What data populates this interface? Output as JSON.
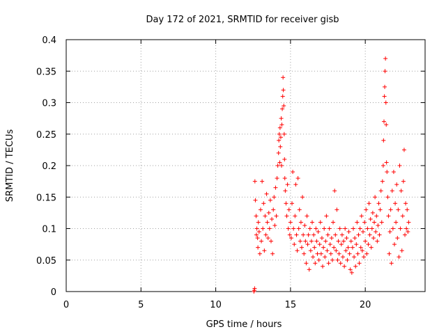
{
  "chart_data": {
    "type": "scatter",
    "title": "Day 172 of 2021, SRMTID for receiver gisb",
    "xlabel": "GPS time / hours",
    "ylabel": "SRMTID / TECUs",
    "xlim": [
      0,
      24
    ],
    "ylim": [
      0,
      0.4
    ],
    "x_ticks": [
      0,
      5,
      10,
      15,
      20
    ],
    "y_ticks": [
      0,
      0.05,
      0.1,
      0.15,
      0.2,
      0.25,
      0.3,
      0.35,
      0.4
    ],
    "grid": true,
    "marker": "+",
    "color": "#ff0000",
    "series": [
      {
        "points": [
          [
            12.55,
            0.0
          ],
          [
            12.58,
            0.002
          ],
          [
            12.6,
            0.005
          ],
          [
            12.62,
            0.175
          ],
          [
            12.65,
            0.145
          ],
          [
            12.7,
            0.12
          ],
          [
            12.72,
            0.09
          ],
          [
            12.75,
            0.1
          ],
          [
            12.8,
            0.085
          ],
          [
            12.82,
            0.07
          ],
          [
            12.85,
            0.11
          ],
          [
            12.9,
            0.095
          ],
          [
            12.95,
            0.06
          ],
          [
            13.0,
            0.13
          ],
          [
            13.05,
            0.08
          ],
          [
            13.1,
            0.175
          ],
          [
            13.15,
            0.1
          ],
          [
            13.2,
            0.14
          ],
          [
            13.25,
            0.065
          ],
          [
            13.3,
            0.12
          ],
          [
            13.35,
            0.09
          ],
          [
            13.4,
            0.155
          ],
          [
            13.45,
            0.11
          ],
          [
            13.5,
            0.085
          ],
          [
            13.55,
            0.125
          ],
          [
            13.6,
            0.1
          ],
          [
            13.65,
            0.145
          ],
          [
            13.7,
            0.08
          ],
          [
            13.75,
            0.115
          ],
          [
            13.8,
            0.06
          ],
          [
            13.85,
            0.13
          ],
          [
            13.9,
            0.15
          ],
          [
            13.95,
            0.105
          ],
          [
            14.0,
            0.165
          ],
          [
            14.05,
            0.12
          ],
          [
            14.1,
            0.18
          ],
          [
            14.15,
            0.2
          ],
          [
            14.2,
            0.22
          ],
          [
            14.22,
            0.24
          ],
          [
            14.25,
            0.25
          ],
          [
            14.28,
            0.205
          ],
          [
            14.3,
            0.26
          ],
          [
            14.32,
            0.23
          ],
          [
            14.35,
            0.245
          ],
          [
            14.38,
            0.275
          ],
          [
            14.4,
            0.2
          ],
          [
            14.42,
            0.265
          ],
          [
            14.45,
            0.29
          ],
          [
            14.48,
            0.31
          ],
          [
            14.5,
            0.34
          ],
          [
            14.52,
            0.32
          ],
          [
            14.55,
            0.295
          ],
          [
            14.58,
            0.25
          ],
          [
            14.6,
            0.21
          ],
          [
            14.62,
            0.18
          ],
          [
            14.65,
            0.16
          ],
          [
            14.7,
            0.14
          ],
          [
            14.75,
            0.12
          ],
          [
            14.8,
            0.17
          ],
          [
            14.85,
            0.1
          ],
          [
            14.9,
            0.13
          ],
          [
            14.95,
            0.09
          ],
          [
            15.0,
            0.11
          ],
          [
            15.05,
            0.085
          ],
          [
            15.1,
            0.14
          ],
          [
            15.15,
            0.19
          ],
          [
            15.2,
            0.1
          ],
          [
            15.25,
            0.075
          ],
          [
            15.3,
            0.12
          ],
          [
            15.35,
            0.17
          ],
          [
            15.4,
            0.09
          ],
          [
            15.45,
            0.065
          ],
          [
            15.5,
            0.18
          ],
          [
            15.55,
            0.1
          ],
          [
            15.6,
            0.13
          ],
          [
            15.65,
            0.08
          ],
          [
            15.7,
            0.11
          ],
          [
            15.75,
            0.07
          ],
          [
            15.8,
            0.15
          ],
          [
            15.85,
            0.09
          ],
          [
            15.9,
            0.06
          ],
          [
            15.95,
            0.105
          ],
          [
            16.0,
            0.08
          ],
          [
            16.05,
            0.045
          ],
          [
            16.1,
            0.12
          ],
          [
            16.15,
            0.075
          ],
          [
            16.2,
            0.09
          ],
          [
            16.25,
            0.035
          ],
          [
            16.3,
            0.1
          ],
          [
            16.35,
            0.065
          ],
          [
            16.4,
            0.08
          ],
          [
            16.45,
            0.11
          ],
          [
            16.5,
            0.055
          ],
          [
            16.55,
            0.09
          ],
          [
            16.6,
            0.07
          ],
          [
            16.65,
            0.045
          ],
          [
            16.7,
            0.1
          ],
          [
            16.75,
            0.08
          ],
          [
            16.8,
            0.06
          ],
          [
            16.85,
            0.095
          ],
          [
            16.9,
            0.05
          ],
          [
            16.95,
            0.075
          ],
          [
            17.0,
            0.11
          ],
          [
            17.05,
            0.06
          ],
          [
            17.1,
            0.085
          ],
          [
            17.15,
            0.04
          ],
          [
            17.2,
            0.07
          ],
          [
            17.25,
            0.1
          ],
          [
            17.3,
            0.055
          ],
          [
            17.35,
            0.08
          ],
          [
            17.4,
            0.12
          ],
          [
            17.45,
            0.065
          ],
          [
            17.5,
            0.09
          ],
          [
            17.55,
            0.045
          ],
          [
            17.6,
            0.1
          ],
          [
            17.65,
            0.075
          ],
          [
            17.7,
            0.06
          ],
          [
            17.75,
            0.085
          ],
          [
            17.8,
            0.05
          ],
          [
            17.85,
            0.11
          ],
          [
            17.9,
            0.07
          ],
          [
            17.95,
            0.16
          ],
          [
            18.0,
            0.09
          ],
          [
            18.05,
            0.065
          ],
          [
            18.1,
            0.13
          ],
          [
            18.15,
            0.05
          ],
          [
            18.2,
            0.08
          ],
          [
            18.25,
            0.06
          ],
          [
            18.3,
            0.1
          ],
          [
            18.35,
            0.045
          ],
          [
            18.4,
            0.075
          ],
          [
            18.45,
            0.09
          ],
          [
            18.5,
            0.055
          ],
          [
            18.55,
            0.08
          ],
          [
            18.6,
            0.04
          ],
          [
            18.65,
            0.1
          ],
          [
            18.7,
            0.065
          ],
          [
            18.75,
            0.085
          ],
          [
            18.8,
            0.05
          ],
          [
            18.85,
            0.07
          ],
          [
            18.9,
            0.095
          ],
          [
            18.95,
            0.06
          ],
          [
            19.0,
            0.035
          ],
          [
            19.05,
            0.08
          ],
          [
            19.1,
            0.03
          ],
          [
            19.15,
            0.07
          ],
          [
            19.2,
            0.1
          ],
          [
            19.25,
            0.055
          ],
          [
            19.3,
            0.085
          ],
          [
            19.35,
            0.04
          ],
          [
            19.4,
            0.075
          ],
          [
            19.45,
            0.11
          ],
          [
            19.5,
            0.06
          ],
          [
            19.55,
            0.09
          ],
          [
            19.6,
            0.045
          ],
          [
            19.65,
            0.1
          ],
          [
            19.7,
            0.07
          ],
          [
            19.75,
            0.12
          ],
          [
            19.8,
            0.065
          ],
          [
            19.85,
            0.095
          ],
          [
            19.9,
            0.055
          ],
          [
            19.95,
            0.11
          ],
          [
            20.0,
            0.08
          ],
          [
            20.05,
            0.13
          ],
          [
            20.1,
            0.06
          ],
          [
            20.15,
            0.1
          ],
          [
            20.2,
            0.075
          ],
          [
            20.25,
            0.14
          ],
          [
            20.3,
            0.09
          ],
          [
            20.35,
            0.115
          ],
          [
            20.4,
            0.07
          ],
          [
            20.45,
            0.1
          ],
          [
            20.5,
            0.125
          ],
          [
            20.55,
            0.085
          ],
          [
            20.6,
            0.11
          ],
          [
            20.65,
            0.15
          ],
          [
            20.7,
            0.095
          ],
          [
            20.75,
            0.12
          ],
          [
            20.8,
            0.08
          ],
          [
            20.85,
            0.105
          ],
          [
            20.9,
            0.14
          ],
          [
            20.95,
            0.09
          ],
          [
            21.0,
            0.13
          ],
          [
            21.05,
            0.16
          ],
          [
            21.1,
            0.11
          ],
          [
            21.15,
            0.175
          ],
          [
            21.2,
            0.2
          ],
          [
            21.22,
            0.24
          ],
          [
            21.25,
            0.27
          ],
          [
            21.28,
            0.31
          ],
          [
            21.3,
            0.325
          ],
          [
            21.32,
            0.35
          ],
          [
            21.35,
            0.37
          ],
          [
            21.38,
            0.3
          ],
          [
            21.4,
            0.265
          ],
          [
            21.42,
            0.205
          ],
          [
            21.45,
            0.19
          ],
          [
            21.5,
            0.15
          ],
          [
            21.55,
            0.12
          ],
          [
            21.6,
            0.06
          ],
          [
            21.65,
            0.095
          ],
          [
            21.7,
            0.13
          ],
          [
            21.75,
            0.045
          ],
          [
            21.8,
            0.16
          ],
          [
            21.85,
            0.1
          ],
          [
            21.9,
            0.19
          ],
          [
            21.95,
            0.075
          ],
          [
            22.0,
            0.14
          ],
          [
            22.05,
            0.11
          ],
          [
            22.1,
            0.17
          ],
          [
            22.15,
            0.085
          ],
          [
            22.2,
            0.13
          ],
          [
            22.25,
            0.055
          ],
          [
            22.3,
            0.2
          ],
          [
            22.35,
            0.1
          ],
          [
            22.4,
            0.16
          ],
          [
            22.45,
            0.065
          ],
          [
            22.5,
            0.12
          ],
          [
            22.55,
            0.175
          ],
          [
            22.6,
            0.225
          ],
          [
            22.65,
            0.09
          ],
          [
            22.7,
            0.14
          ],
          [
            22.75,
            0.1
          ],
          [
            22.8,
            0.13
          ],
          [
            22.85,
            0.095
          ],
          [
            22.9,
            0.11
          ]
        ]
      }
    ]
  }
}
